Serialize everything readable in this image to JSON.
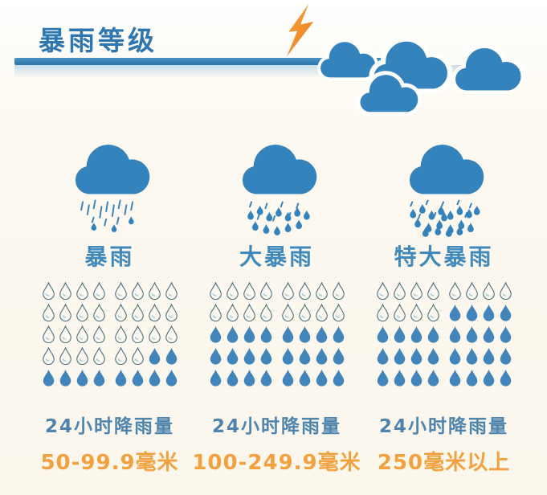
{
  "title": "暴雨等级",
  "colors": {
    "cloud_blue": "#3583bd",
    "title_blue": "#2e76b0",
    "label_blue": "#4189ba",
    "caption_blue": "#4e84ad",
    "value_orange": "#f2a13f",
    "bar_blue": "#2e7db3",
    "drop_fill": "#4285ba",
    "drop_outline": "#4c707d",
    "drop_highlight": "#8ec7de",
    "lightning_orange": "#ef9338"
  },
  "icons": {
    "lightning": "lightning-bolt-icon",
    "header_clouds": "cloud-icon",
    "column_icons": "storm-cloud-rain-icon",
    "drops": "raindrop-icon"
  },
  "chart_data": {
    "type": "pictograph",
    "title": "暴雨等级",
    "unit_per_grid": "raindrop pictogram, 40 drops per category (5 rows x 8)",
    "categories": [
      "暴雨",
      "大暴雨",
      "特大暴雨"
    ],
    "caption": "24小时降雨量",
    "values": [
      "50-99.9毫米",
      "100-249.9毫米",
      "250毫米以上"
    ],
    "filled_drops": [
      10,
      24,
      28
    ],
    "total_drops": [
      40,
      40,
      40
    ]
  },
  "columns": [
    {
      "label": "暴雨",
      "rain": "light",
      "caption": "24小时降雨量",
      "value": "50-99.9毫米",
      "drops_filled": 10,
      "drops_total": 40,
      "drop_rows": [
        "00000000",
        "00000000",
        "00000000",
        "00000011",
        "11111111"
      ]
    },
    {
      "label": "大暴雨",
      "rain": "medium",
      "caption": "24小时降雨量",
      "value": "100-249.9毫米",
      "drops_filled": 24,
      "drops_total": 40,
      "drop_rows": [
        "00000000",
        "00000000",
        "11111111",
        "11111111",
        "11111111"
      ]
    },
    {
      "label": "特大暴雨",
      "rain": "heavy",
      "caption": "24小时降雨量",
      "value": "250毫米以上",
      "drops_filled": 28,
      "drops_total": 40,
      "drop_rows": [
        "00000000",
        "00001111",
        "11111111",
        "11111111",
        "11111111"
      ]
    }
  ]
}
